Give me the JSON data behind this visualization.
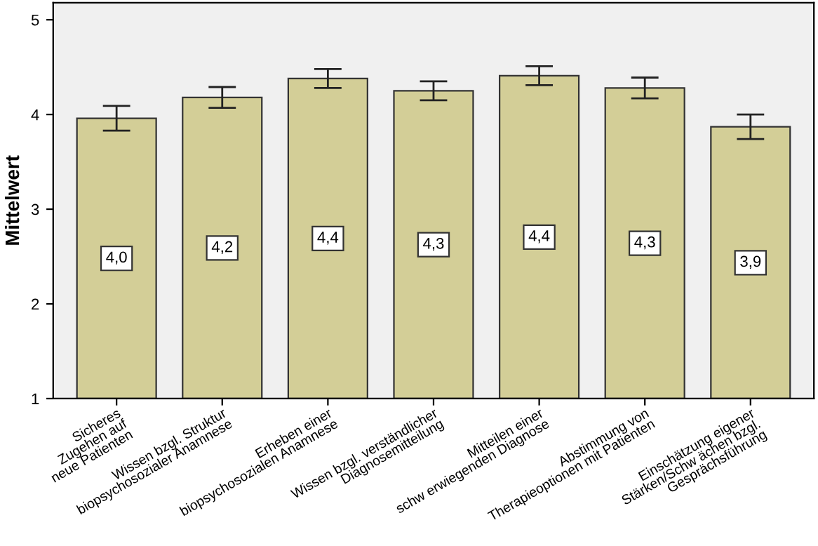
{
  "chart_data": {
    "type": "bar",
    "ylabel": "Mittelwert",
    "categories": [
      "Sicheres\nZugehen auf\nneue Patienten",
      "Wissen bzgl. Struktur\nbiopsychosozialer Anamnese",
      "Erheben einer\nbiopsychosozialen Anamnese",
      "Wissen bzgl. verständlicher\nDiagnosemitteilung",
      "Mitteilen einer\nschw erwiegenden Diagnose",
      "Abstimmung von\nTherapieoptionen mit Patienten",
      "Einschätzung eigener\nStärken/Schw ächen bzgl.\nGesprächsführung"
    ],
    "values": [
      3.96,
      4.18,
      4.38,
      4.25,
      4.41,
      4.28,
      3.87
    ],
    "errors": [
      0.13,
      0.11,
      0.1,
      0.1,
      0.1,
      0.11,
      0.13
    ],
    "value_labels": [
      "4,0",
      "4,2",
      "4,4",
      "4,3",
      "4,4",
      "4,3",
      "3,9"
    ],
    "color": "#d3ce97",
    "ylim": [
      1,
      5.18
    ],
    "yticks": [
      1,
      2,
      3,
      4,
      5
    ],
    "grid": false,
    "legend": false
  }
}
